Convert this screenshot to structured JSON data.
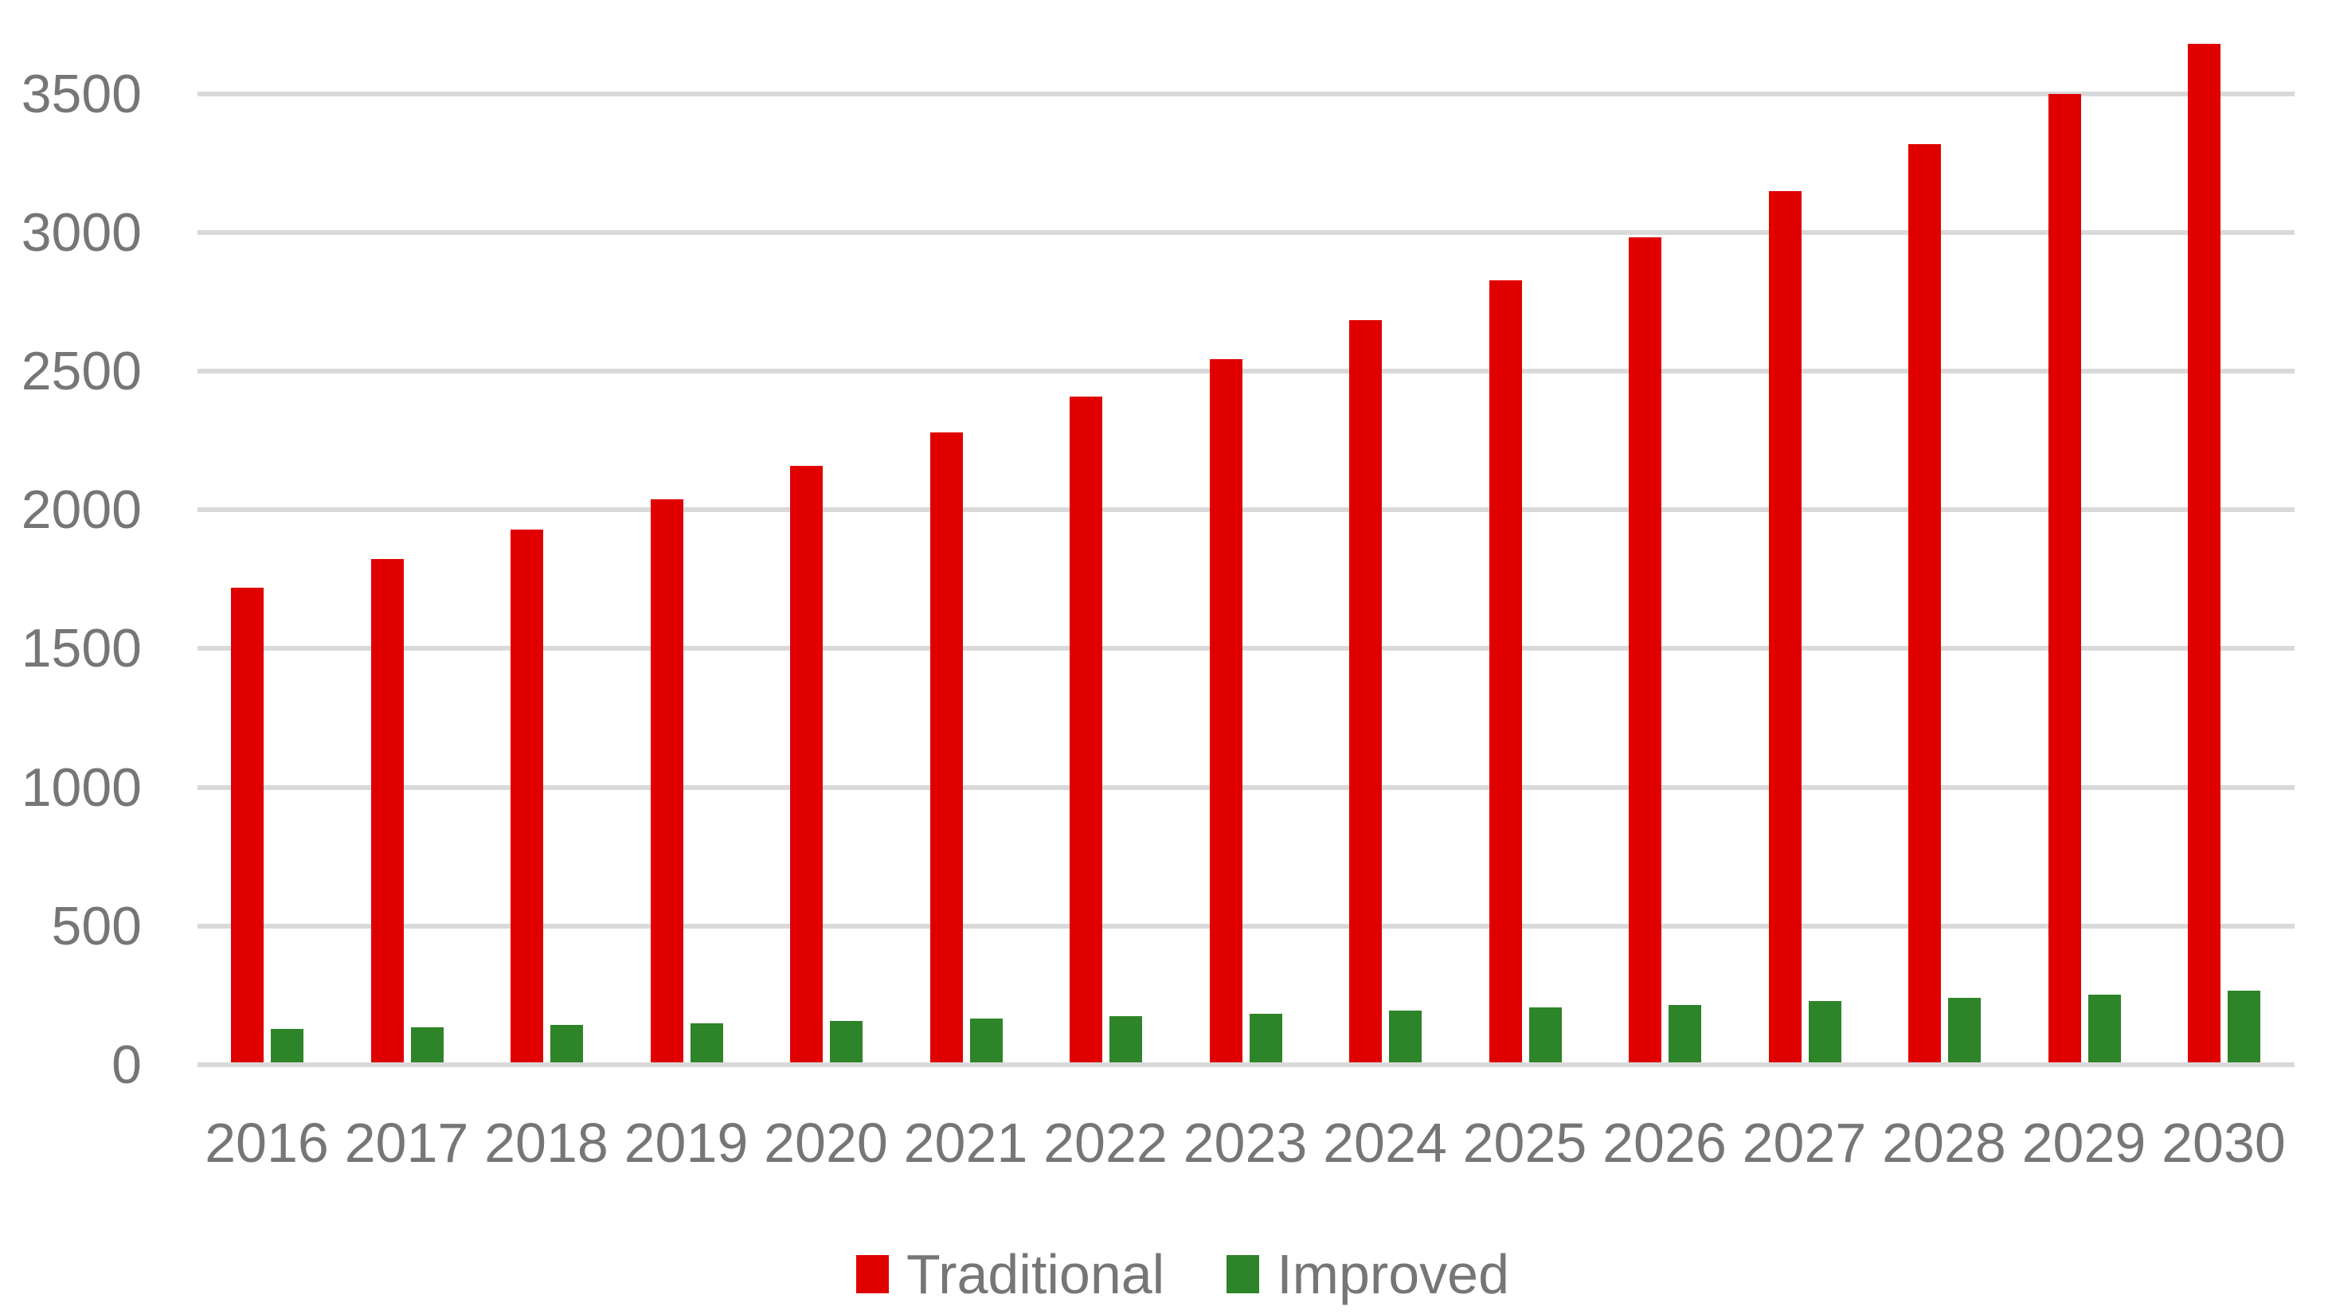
{
  "chart_data": {
    "type": "bar",
    "title": "",
    "categories": [
      "2016",
      "2017",
      "2018",
      "2019",
      "2020",
      "2021",
      "2022",
      "2023",
      "2024",
      "2025",
      "2026",
      "2027",
      "2028",
      "2029",
      "2030"
    ],
    "series": [
      {
        "name": "Traditional",
        "color": "#e00000",
        "values": [
          1710,
          1815,
          1920,
          2030,
          2150,
          2270,
          2400,
          2535,
          2675,
          2820,
          2975,
          3140,
          3310,
          3490,
          3670
        ]
      },
      {
        "name": "Improved",
        "color": "#2e8428",
        "values": [
          120,
          127,
          134,
          141,
          149,
          158,
          167,
          176,
          186,
          197,
          208,
          220,
          232,
          245,
          259
        ]
      }
    ],
    "xlabel": "",
    "ylabel": "",
    "ylim": [
      0,
      3500
    ],
    "ytick_step": 500,
    "yticks": [
      "0",
      "500",
      "1000",
      "1500",
      "2000",
      "2500",
      "3000",
      "3500"
    ],
    "grid": true,
    "legend_position": "bottom",
    "colors": {
      "gridline": "#d9d9d9",
      "axis_labels": "#767676",
      "background": "#ffffff"
    }
  }
}
